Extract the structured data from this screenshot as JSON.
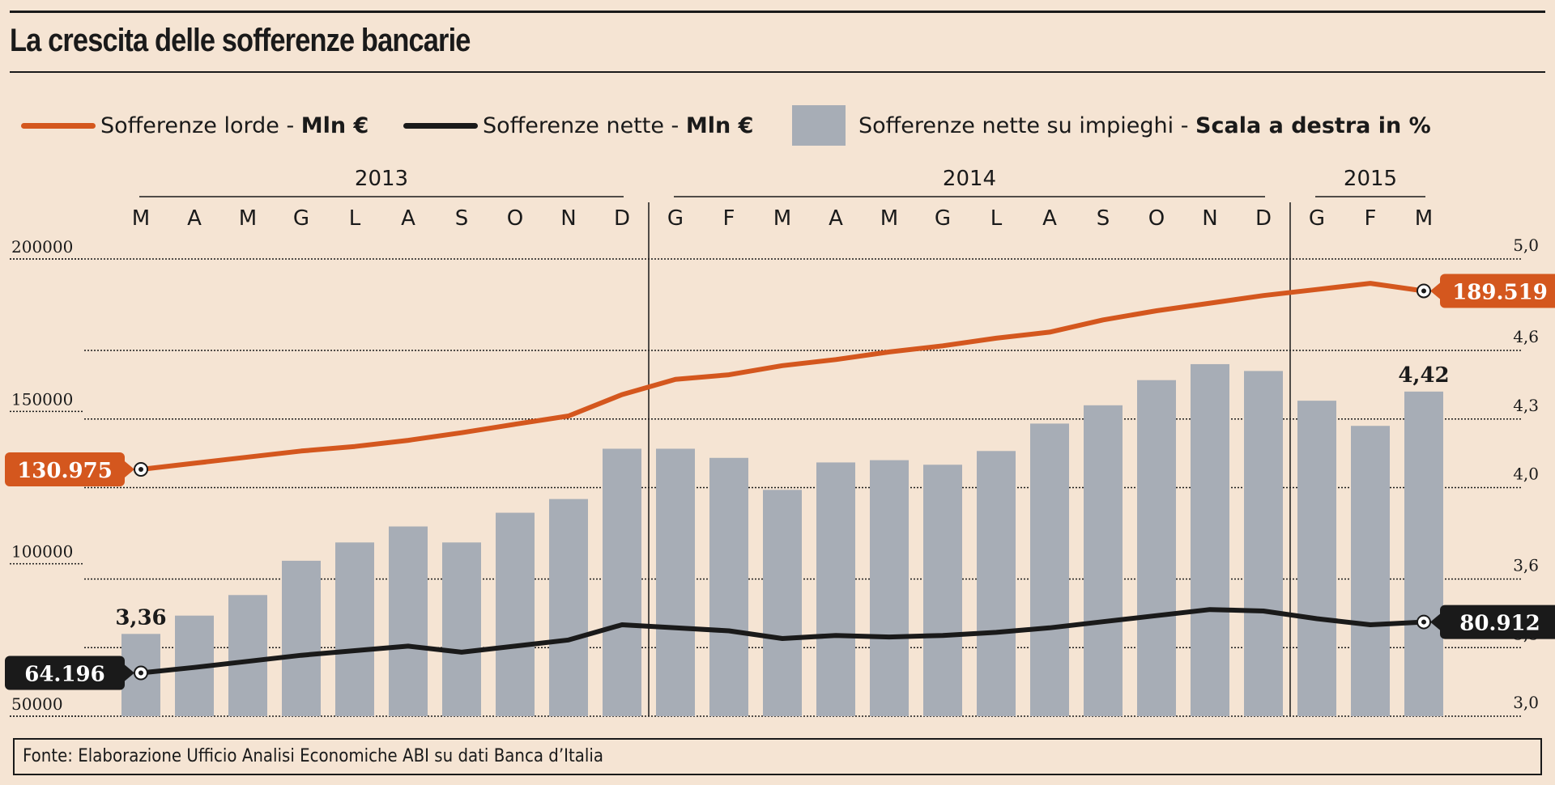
{
  "title": "La crescita delle sofferenze bancarie",
  "legend": {
    "gross": {
      "label": "Sofferenze lorde - ",
      "unit": "Mln €"
    },
    "net": {
      "label": "Sofferenze nette - ",
      "unit": "Mln €"
    },
    "ratio": {
      "label": "Sofferenze nette su impieghi - ",
      "unit": "Scala a destra in %"
    }
  },
  "source": "Fonte: Elaborazione Ufficio Analisi Economiche ABI su dati Banca d’Italia",
  "colors": {
    "gross": "#d4571e",
    "net": "#1a1a1a",
    "bars": "#a7adb6",
    "background": "#f5e4d3"
  },
  "chart_data": {
    "type": "bar",
    "years": [
      {
        "label": "2013",
        "start": 0,
        "end": 9
      },
      {
        "label": "2014",
        "start": 10,
        "end": 21
      },
      {
        "label": "2015",
        "start": 22,
        "end": 24
      }
    ],
    "categories": [
      "M",
      "A",
      "M",
      "G",
      "L",
      "A",
      "S",
      "O",
      "N",
      "D",
      "G",
      "F",
      "M",
      "A",
      "M",
      "G",
      "L",
      "A",
      "S",
      "O",
      "N",
      "D",
      "G",
      "F",
      "M"
    ],
    "y_left": {
      "ticks": [
        "200000",
        "150000",
        "100000",
        "50000"
      ],
      "tick_values": [
        200000,
        150000,
        100000,
        50000
      ],
      "ylim": [
        50000,
        200000
      ]
    },
    "y_right": {
      "ticks": [
        "5,0",
        "4,6",
        "4,3",
        "4,0",
        "3,6",
        "3,3",
        "3,0"
      ],
      "tick_values": [
        5.0,
        4.6,
        4.3,
        4.0,
        3.6,
        3.3,
        3.0
      ],
      "ylim": [
        3.0,
        5.0
      ]
    },
    "grid": true,
    "series": [
      {
        "name": "Sofferenze lorde - Mln €",
        "type": "line",
        "axis": "left",
        "values": [
          130975,
          133000,
          135000,
          137000,
          138500,
          140500,
          143000,
          145800,
          148500,
          155500,
          160500,
          162000,
          165000,
          167000,
          169500,
          171500,
          174000,
          176000,
          180000,
          183000,
          185500,
          188000,
          190000,
          192000,
          189519
        ]
      },
      {
        "name": "Sofferenze nette - Mln €",
        "type": "line",
        "axis": "left",
        "values": [
          64196,
          66000,
          68000,
          70000,
          71500,
          73000,
          71000,
          73000,
          75000,
          80000,
          79000,
          78000,
          75500,
          76500,
          76000,
          76500,
          77500,
          79000,
          81000,
          83000,
          85000,
          84500,
          82000,
          80000,
          80912
        ]
      },
      {
        "name": "Sofferenze nette su impieghi - Scala a destra in %",
        "type": "bar",
        "axis": "right",
        "values": [
          3.36,
          3.44,
          3.53,
          3.68,
          3.76,
          3.83,
          3.76,
          3.89,
          3.95,
          4.17,
          4.17,
          4.13,
          3.99,
          4.11,
          4.12,
          4.1,
          4.16,
          4.28,
          4.36,
          4.47,
          4.54,
          4.51,
          4.38,
          4.27,
          4.42
        ]
      }
    ],
    "annotations": {
      "gross_start": "130.975",
      "gross_end": "189.519",
      "net_start": "64.196",
      "net_end": "80.912",
      "ratio_start": "3,36",
      "ratio_end": "4,42"
    }
  }
}
